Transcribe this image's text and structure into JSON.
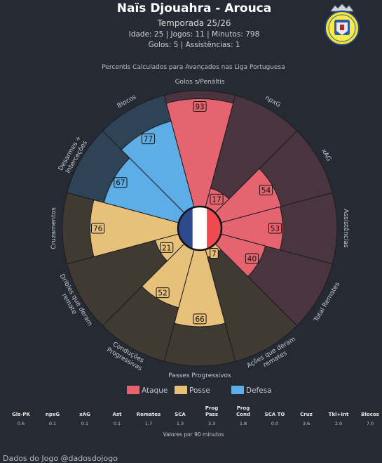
{
  "header": {
    "title": "Naïs Djouahra - Arouca",
    "season": "Temporada 25/26",
    "line1": "Idade: 25 | Jogos: 11 | Minutos: 798",
    "line2": "Golos: 5 | Assistências: 1",
    "subtitle": "Percentis Calculados para Avançados nas Liga Portuguesa"
  },
  "chart_data": {
    "type": "polar-bar",
    "title": "Percentis Calculados para Avançados nas Liga Portuguesa",
    "rlim": [
      0,
      100
    ],
    "categories": [
      "Golos s/Penáltis",
      "npxG",
      "xAG",
      "Assistências",
      "Total Remates",
      "Ações que deram remates",
      "Passes Progressivos",
      "Conduções Progressivas",
      "Dribles que deram remate",
      "Cruzamentos",
      "Desarmes + Interceções",
      "Blocos"
    ],
    "values": [
      93,
      17,
      54,
      53,
      40,
      7,
      66,
      52,
      21,
      76,
      67,
      77
    ],
    "groups": [
      "Ataque",
      "Ataque",
      "Ataque",
      "Ataque",
      "Ataque",
      "Posse",
      "Posse",
      "Posse",
      "Posse",
      "Posse",
      "Defesa",
      "Defesa"
    ],
    "legend": [
      {
        "name": "Ataque",
        "color": "#e5646f"
      },
      {
        "name": "Posse",
        "color": "#e7c17a"
      },
      {
        "name": "Defesa",
        "color": "#5dade6"
      }
    ],
    "background_colors": {
      "Ataque": "#4a343d",
      "Posse": "#413a33",
      "Defesa": "#2f4356"
    },
    "legend_position": "bottom"
  },
  "stats": {
    "headers": [
      "Gls-PK",
      "npxG",
      "xAG",
      "Ast",
      "Remates",
      "SCA",
      "Prog\nPass",
      "Prog\nCond",
      "SCA TO",
      "Cruz",
      "Tkl+Int",
      "Blocos"
    ],
    "values": [
      "0.6",
      "0.1",
      "0.1",
      "0.1",
      "1.7",
      "1.3",
      "3.3",
      "1.8",
      "0.0",
      "3.6",
      "2.0",
      "7.0"
    ],
    "caption": "Valores por 90 minutos"
  },
  "footer": {
    "credit": "Dados do Jogo @dadosdojogo"
  },
  "colors": {
    "background": "#262a33",
    "flag_blue": "#2d4a8f",
    "flag_white": "#ffffff",
    "flag_red": "#ee4a50"
  },
  "logo": {
    "name": "arouca-crest-icon"
  }
}
